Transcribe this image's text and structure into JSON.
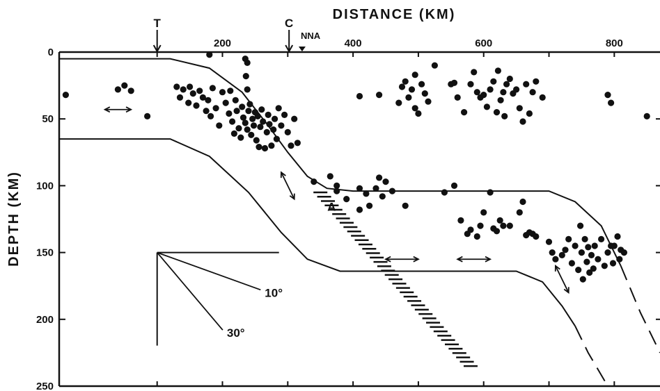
{
  "chart_data": {
    "type": "scatter",
    "title": "",
    "xlabel": "DISTANCE (KM)",
    "ylabel": "DEPTH (KM)",
    "xlim": [
      -50,
      870
    ],
    "ylim": [
      250,
      0
    ],
    "x_ticks": [
      200,
      400,
      600,
      800
    ],
    "y_ticks": [
      0,
      50,
      100,
      150,
      200,
      250
    ],
    "grid": false,
    "location_markers": [
      {
        "label": "T",
        "x": 100
      },
      {
        "label": "C",
        "x": 302
      },
      {
        "label": "NNA",
        "x": 322
      }
    ],
    "point_label": {
      "label": "A",
      "x": 380,
      "y": 115
    },
    "dip_reference": {
      "origin": [
        100,
        150
      ],
      "angles": [
        {
          "label": "10°",
          "deg": 10
        },
        {
          "label": "30°",
          "deg": 30
        }
      ]
    },
    "boundaries": [
      {
        "name": "upper",
        "points": [
          [
            -50,
            5
          ],
          [
            120,
            5
          ],
          [
            180,
            12
          ],
          [
            230,
            30
          ],
          [
            270,
            55
          ],
          [
            300,
            75
          ],
          [
            330,
            93
          ],
          [
            360,
            102
          ],
          [
            400,
            104
          ],
          [
            700,
            104
          ],
          [
            740,
            112
          ],
          [
            780,
            130
          ],
          [
            810,
            160
          ]
        ],
        "dashed_points": [
          [
            810,
            160
          ],
          [
            840,
            195
          ],
          [
            870,
            225
          ]
        ]
      },
      {
        "name": "lower",
        "points": [
          [
            -50,
            65
          ],
          [
            120,
            65
          ],
          [
            180,
            78
          ],
          [
            240,
            105
          ],
          [
            290,
            135
          ],
          [
            330,
            155
          ],
          [
            380,
            164
          ],
          [
            650,
            164
          ],
          [
            690,
            172
          ],
          [
            720,
            190
          ],
          [
            740,
            205
          ]
        ],
        "dashed_points": [
          [
            740,
            205
          ],
          [
            760,
            225
          ],
          [
            790,
            250
          ]
        ]
      }
    ],
    "hatched_band": {
      "start": [
        350,
        105
      ],
      "end": [
        580,
        235
      ]
    },
    "flow_arrows": [
      {
        "x1": 20,
        "y1": 43,
        "x2": 60,
        "y2": 43
      },
      {
        "x1": 290,
        "y1": 90,
        "x2": 310,
        "y2": 110
      },
      {
        "x1": 450,
        "y1": 155,
        "x2": 500,
        "y2": 155
      },
      {
        "x1": 560,
        "y1": 155,
        "x2": 610,
        "y2": 155
      },
      {
        "x1": 710,
        "y1": 160,
        "x2": 730,
        "y2": 180
      }
    ],
    "series": [
      {
        "values": [
          [
            -40,
            32
          ],
          [
            40,
            28
          ],
          [
            50,
            25
          ],
          [
            60,
            29
          ],
          [
            85,
            48
          ],
          [
            180,
            2
          ],
          [
            235,
            5
          ],
          [
            238,
            8
          ],
          [
            236,
            18
          ],
          [
            238,
            28
          ],
          [
            130,
            26
          ],
          [
            135,
            34
          ],
          [
            140,
            28
          ],
          [
            148,
            38
          ],
          [
            150,
            26
          ],
          [
            155,
            31
          ],
          [
            160,
            40
          ],
          [
            165,
            29
          ],
          [
            170,
            34
          ],
          [
            175,
            44
          ],
          [
            178,
            36
          ],
          [
            182,
            48
          ],
          [
            185,
            27
          ],
          [
            190,
            42
          ],
          [
            195,
            55
          ],
          [
            200,
            30
          ],
          [
            205,
            38
          ],
          [
            210,
            46
          ],
          [
            212,
            29
          ],
          [
            215,
            52
          ],
          [
            218,
            61
          ],
          [
            220,
            36
          ],
          [
            222,
            44
          ],
          [
            225,
            57
          ],
          [
            228,
            64
          ],
          [
            230,
            41
          ],
          [
            232,
            49
          ],
          [
            235,
            53
          ],
          [
            238,
            58
          ],
          [
            240,
            44
          ],
          [
            242,
            39
          ],
          [
            244,
            62
          ],
          [
            246,
            50
          ],
          [
            248,
            55
          ],
          [
            250,
            45
          ],
          [
            252,
            66
          ],
          [
            254,
            48
          ],
          [
            256,
            71
          ],
          [
            258,
            56
          ],
          [
            260,
            43
          ],
          [
            262,
            52
          ],
          [
            265,
            72
          ],
          [
            268,
            60
          ],
          [
            270,
            47
          ],
          [
            272,
            54
          ],
          [
            275,
            70
          ],
          [
            278,
            58
          ],
          [
            280,
            50
          ],
          [
            283,
            65
          ],
          [
            286,
            42
          ],
          [
            290,
            55
          ],
          [
            295,
            47
          ],
          [
            300,
            60
          ],
          [
            305,
            70
          ],
          [
            310,
            50
          ],
          [
            315,
            68
          ],
          [
            340,
            97
          ],
          [
            365,
            93
          ],
          [
            375,
            100
          ],
          [
            375,
            104
          ],
          [
            390,
            110
          ],
          [
            410,
            102
          ],
          [
            410,
            118
          ],
          [
            420,
            106
          ],
          [
            425,
            115
          ],
          [
            435,
            102
          ],
          [
            440,
            94
          ],
          [
            445,
            108
          ],
          [
            450,
            97
          ],
          [
            460,
            104
          ],
          [
            480,
            115
          ],
          [
            410,
            33
          ],
          [
            440,
            32
          ],
          [
            470,
            38
          ],
          [
            475,
            26
          ],
          [
            480,
            22
          ],
          [
            485,
            34
          ],
          [
            490,
            28
          ],
          [
            495,
            17
          ],
          [
            495,
            42
          ],
          [
            500,
            46
          ],
          [
            505,
            24
          ],
          [
            510,
            31
          ],
          [
            515,
            37
          ],
          [
            525,
            10
          ],
          [
            550,
            24
          ],
          [
            555,
            23
          ],
          [
            560,
            34
          ],
          [
            570,
            45
          ],
          [
            580,
            24
          ],
          [
            585,
            15
          ],
          [
            590,
            30
          ],
          [
            595,
            34
          ],
          [
            600,
            32
          ],
          [
            605,
            41
          ],
          [
            610,
            28
          ],
          [
            615,
            22
          ],
          [
            620,
            45
          ],
          [
            622,
            14
          ],
          [
            626,
            36
          ],
          [
            630,
            30
          ],
          [
            632,
            48
          ],
          [
            635,
            24
          ],
          [
            640,
            20
          ],
          [
            645,
            31
          ],
          [
            650,
            28
          ],
          [
            655,
            42
          ],
          [
            660,
            52
          ],
          [
            665,
            24
          ],
          [
            670,
            46
          ],
          [
            675,
            30
          ],
          [
            680,
            22
          ],
          [
            690,
            34
          ],
          [
            540,
            105
          ],
          [
            555,
            100
          ],
          [
            565,
            126
          ],
          [
            575,
            136
          ],
          [
            580,
            133
          ],
          [
            590,
            138
          ],
          [
            595,
            130
          ],
          [
            600,
            120
          ],
          [
            610,
            105
          ],
          [
            615,
            132
          ],
          [
            620,
            134
          ],
          [
            625,
            126
          ],
          [
            630,
            130
          ],
          [
            640,
            130
          ],
          [
            655,
            120
          ],
          [
            660,
            112
          ],
          [
            665,
            137
          ],
          [
            670,
            135
          ],
          [
            675,
            136
          ],
          [
            680,
            138
          ],
          [
            700,
            142
          ],
          [
            705,
            150
          ],
          [
            710,
            155
          ],
          [
            720,
            152
          ],
          [
            725,
            148
          ],
          [
            730,
            140
          ],
          [
            735,
            158
          ],
          [
            740,
            145
          ],
          [
            745,
            163
          ],
          [
            748,
            130
          ],
          [
            750,
            150
          ],
          [
            752,
            170
          ],
          [
            755,
            140
          ],
          [
            758,
            157
          ],
          [
            760,
            146
          ],
          [
            762,
            165
          ],
          [
            765,
            152
          ],
          [
            768,
            162
          ],
          [
            770,
            145
          ],
          [
            775,
            155
          ],
          [
            780,
            140
          ],
          [
            785,
            160
          ],
          [
            790,
            150
          ],
          [
            795,
            145
          ],
          [
            798,
            158
          ],
          [
            800,
            145
          ],
          [
            805,
            138
          ],
          [
            808,
            155
          ],
          [
            810,
            148
          ],
          [
            815,
            150
          ],
          [
            790,
            32
          ],
          [
            795,
            38
          ],
          [
            850,
            48
          ]
        ]
      }
    ]
  }
}
